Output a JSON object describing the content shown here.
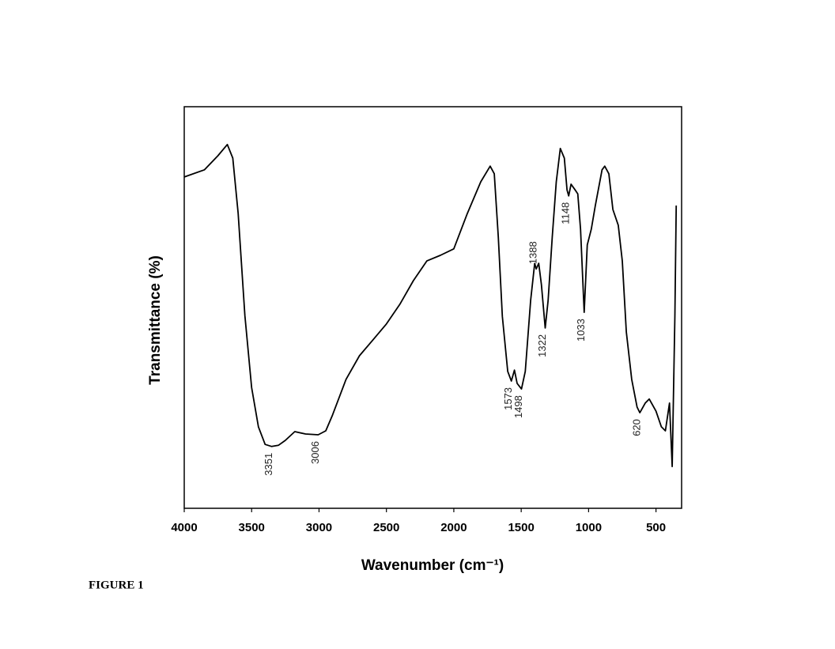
{
  "chart_data": {
    "type": "line",
    "xlabel": "Wavenumber (cm⁻¹)",
    "ylabel": "Transmittance (%)",
    "caption": "FIGURE 1",
    "xlim": [
      4000,
      310
    ],
    "xticks": [
      4000,
      3500,
      3000,
      2500,
      2000,
      1500,
      1000,
      500
    ],
    "ylim": [
      0,
      100
    ],
    "x": [
      4000,
      3850,
      3750,
      3680,
      3640,
      3600,
      3550,
      3500,
      3450,
      3400,
      3351,
      3300,
      3250,
      3180,
      3100,
      3006,
      2950,
      2900,
      2800,
      2700,
      2600,
      2500,
      2400,
      2300,
      2200,
      2100,
      2000,
      1900,
      1800,
      1730,
      1700,
      1670,
      1640,
      1600,
      1573,
      1550,
      1530,
      1498,
      1470,
      1430,
      1400,
      1388,
      1370,
      1350,
      1322,
      1300,
      1270,
      1240,
      1210,
      1180,
      1160,
      1148,
      1130,
      1100,
      1080,
      1060,
      1033,
      1010,
      980,
      950,
      900,
      880,
      850,
      820,
      780,
      750,
      720,
      680,
      640,
      620,
      580,
      550,
      500,
      460,
      430,
      400,
      380,
      360,
      350
    ],
    "series": [
      {
        "color": "#000000",
        "values": [
          82.5,
          84.3,
          87.8,
          90.6,
          87.2,
          73.4,
          48.0,
          30.1,
          20.3,
          15.9,
          15.4,
          15.7,
          16.9,
          19.1,
          18.5,
          18.3,
          19.3,
          23.2,
          32.1,
          38.0,
          41.9,
          45.9,
          50.8,
          56.7,
          61.6,
          63.0,
          64.6,
          73.4,
          81.3,
          85.2,
          83.3,
          67.5,
          47.8,
          34.1,
          31.7,
          34.4,
          31.1,
          29.7,
          34.1,
          51.8,
          61.0,
          59.6,
          61.0,
          55.7,
          44.9,
          51.8,
          67.5,
          81.3,
          89.6,
          87.2,
          79.3,
          77.8,
          80.7,
          79.3,
          78.3,
          69.5,
          48.8,
          65.6,
          69.5,
          75.4,
          84.3,
          85.2,
          83.3,
          74.4,
          70.5,
          61.6,
          43.9,
          32.1,
          25.2,
          23.8,
          26.2,
          27.2,
          24.2,
          20.3,
          19.3,
          26.2,
          10.4,
          47.8,
          75.4
        ]
      }
    ],
    "annotations": [
      {
        "label": "3351",
        "x": 3351
      },
      {
        "label": "3006",
        "x": 3006
      },
      {
        "label": "1573",
        "x": 1573
      },
      {
        "label": "1498",
        "x": 1498
      },
      {
        "label": "1388",
        "x": 1388
      },
      {
        "label": "1322",
        "x": 1322
      },
      {
        "label": "1148",
        "x": 1148
      },
      {
        "label": "1033",
        "x": 1033
      },
      {
        "label": "620",
        "x": 620
      }
    ]
  }
}
